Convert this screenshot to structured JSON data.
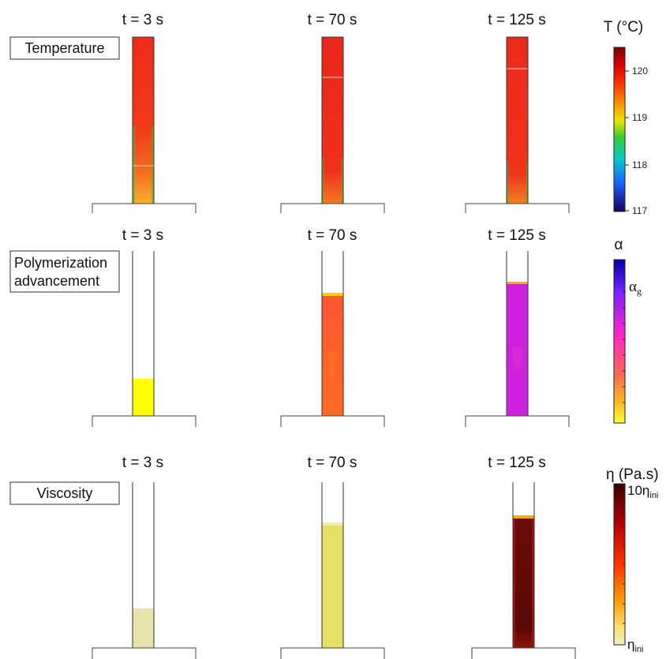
{
  "rows": [
    {
      "label_lines": [
        "Temperature"
      ],
      "time_labels": [
        "t = 3 s",
        "t = 70 s",
        "t = 125 s"
      ],
      "colorbar": {
        "title": "T (°C)",
        "ticks": [
          "120",
          "119",
          "118",
          "117"
        ]
      }
    },
    {
      "label_lines": [
        "Polymerization",
        "advancement"
      ],
      "time_labels": [
        "t = 3 s",
        "t = 70 s",
        "t = 125 s"
      ],
      "colorbar": {
        "title": "α",
        "marker_main": "α",
        "marker_sub": "g"
      }
    },
    {
      "label_lines": [
        "Viscosity"
      ],
      "time_labels": [
        "t = 3 s",
        "t = 70 s",
        "t = 125 s"
      ],
      "colorbar": {
        "title": "η (Pa.s)",
        "top_main": "10η",
        "top_sub": "ini",
        "bottom_main": "η",
        "bottom_sub": "ini"
      }
    }
  ],
  "colors": {
    "temperature_hot": "#e8321e",
    "temperature_cool": "#4caf50",
    "alpha_low": "#ffff00",
    "alpha_mid": "#ff5a2a",
    "alpha_high": "#cc22dd",
    "viscosity_low": "#e6e4a8",
    "viscosity_mid": "#e6e066",
    "viscosity_high": "#5a0a08"
  }
}
